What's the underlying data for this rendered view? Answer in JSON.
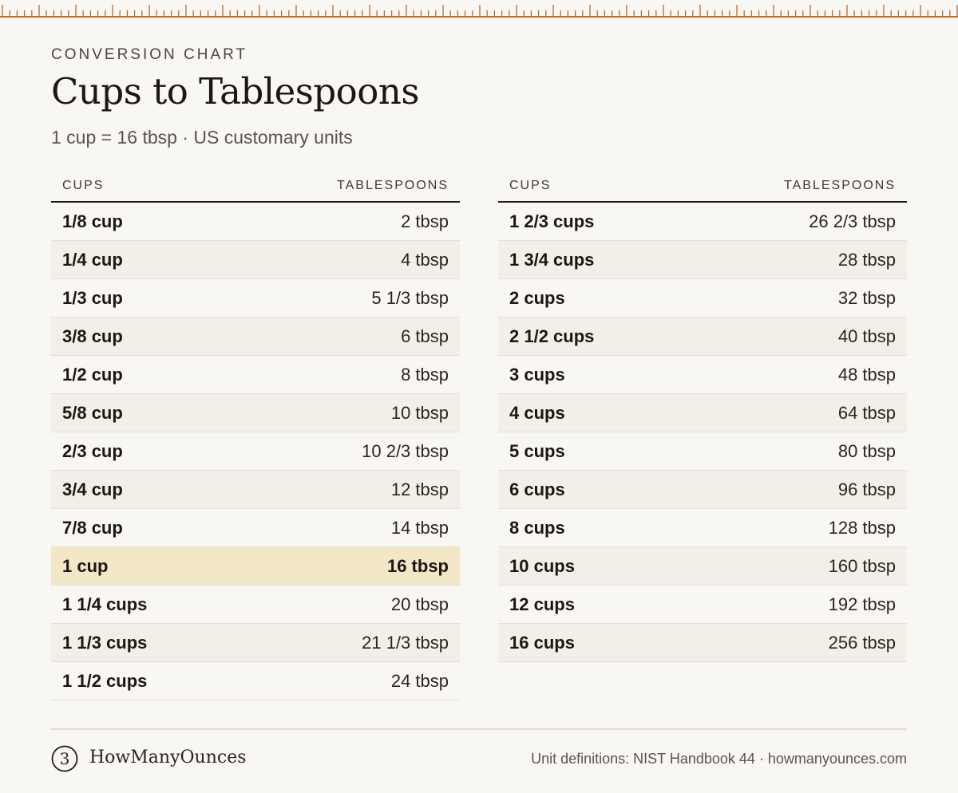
{
  "header": {
    "eyebrow": "CONVERSION CHART",
    "title": "Cups to Tablespoons",
    "subtitle": "1 cup = 16 tbsp · US customary units"
  },
  "colors": {
    "accent": "#c06a2b",
    "highlight_row": "#f4e7c8",
    "background": "#f9f7f3"
  },
  "tables": {
    "left": {
      "headers": [
        "CUPS",
        "TABLESPOONS"
      ],
      "rows": [
        [
          "1/8 cup",
          "2 tbsp"
        ],
        [
          "1/4 cup",
          "4 tbsp"
        ],
        [
          "1/3 cup",
          "5 1/3 tbsp"
        ],
        [
          "3/8 cup",
          "6 tbsp"
        ],
        [
          "1/2 cup",
          "8 tbsp"
        ],
        [
          "5/8 cup",
          "10 tbsp"
        ],
        [
          "2/3 cup",
          "10 2/3 tbsp"
        ],
        [
          "3/4 cup",
          "12 tbsp"
        ],
        [
          "7/8 cup",
          "14 tbsp"
        ],
        [
          "1 cup",
          "16 tbsp"
        ],
        [
          "1 1/4 cups",
          "20 tbsp"
        ],
        [
          "1 1/3 cups",
          "21 1/3 tbsp"
        ],
        [
          "1 1/2 cups",
          "24 tbsp"
        ]
      ],
      "highlighted_row": 9
    },
    "right": {
      "headers": [
        "CUPS",
        "TABLESPOONS"
      ],
      "rows": [
        [
          "1 2/3 cups",
          "26 2/3 tbsp"
        ],
        [
          "1 3/4 cups",
          "28 tbsp"
        ],
        [
          "2 cups",
          "32 tbsp"
        ],
        [
          "2 1/2 cups",
          "40 tbsp"
        ],
        [
          "3 cups",
          "48 tbsp"
        ],
        [
          "4 cups",
          "64 tbsp"
        ],
        [
          "5 cups",
          "80 tbsp"
        ],
        [
          "6 cups",
          "96 tbsp"
        ],
        [
          "8 cups",
          "128 tbsp"
        ],
        [
          "10 cups",
          "160 tbsp"
        ],
        [
          "12 cups",
          "192 tbsp"
        ],
        [
          "16 cups",
          "256 tbsp"
        ]
      ]
    }
  },
  "footer": {
    "logo_icon": "numeral-3-circle-icon",
    "logo_glyph": "3",
    "brand": "HowManyOunces",
    "source": "Unit definitions: NIST Handbook 44 · howmanyounces.com"
  }
}
